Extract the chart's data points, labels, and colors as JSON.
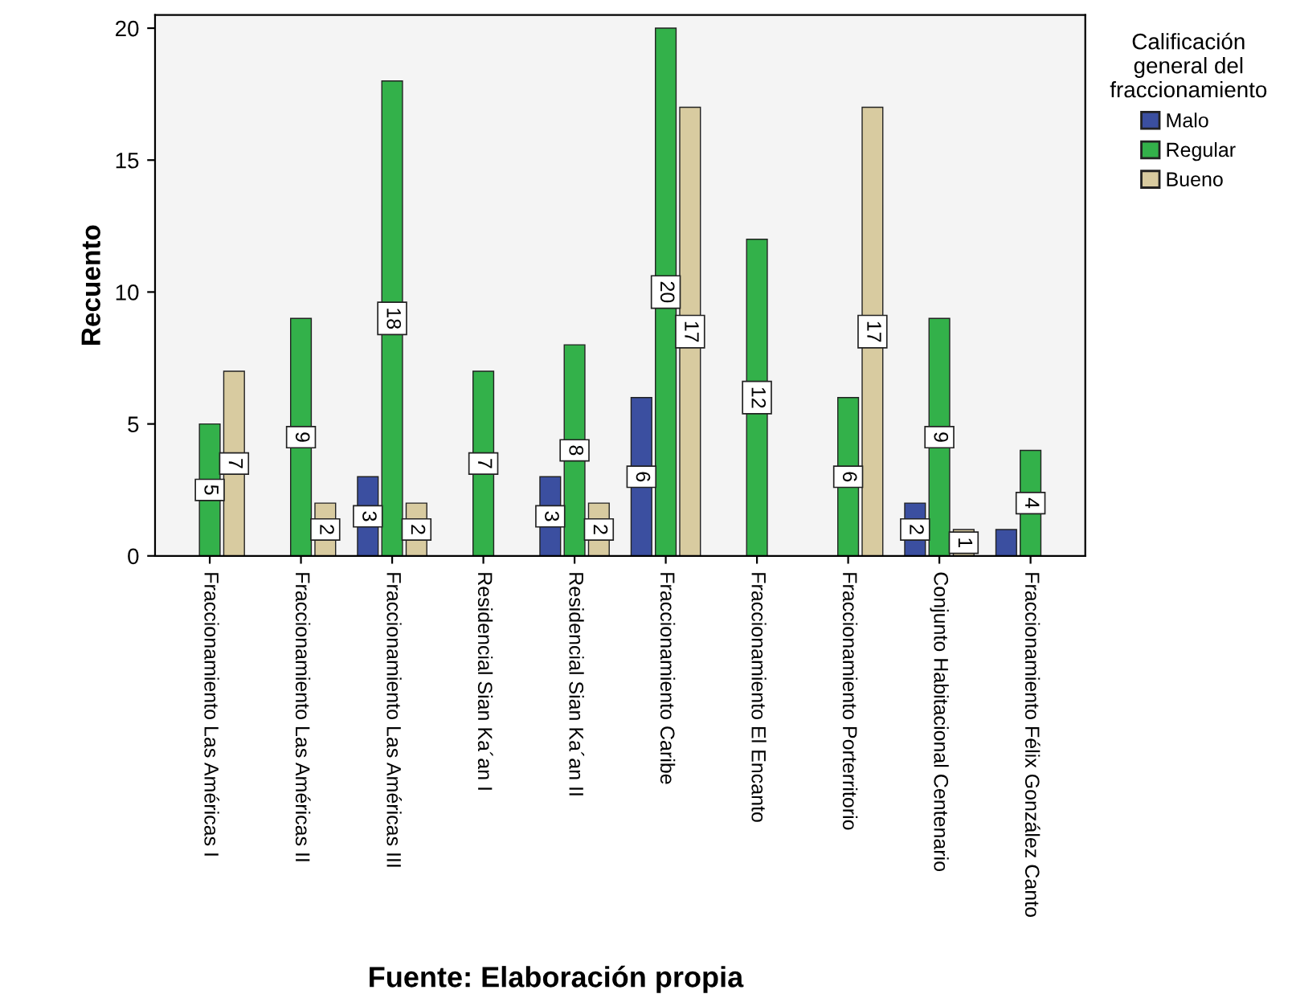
{
  "chart_data": {
    "type": "bar",
    "ylabel": "Recuento",
    "legend_title": "Calificación\ngeneral del\nfraccionamiento",
    "legend": "top right",
    "categories": [
      "Fraccionamiento Las Américas I",
      "Fraccionamiento Las Américas II",
      "Fraccionamiento Las Américas III",
      "Residencial Sian Ka´an I",
      "Residencial Sian Ka´an II",
      "Fraccionamiento Caribe",
      "Fraccionamiento El Encanto",
      "Fraccionamiento Porterritorio",
      "Conjunto Habitacional Centenario",
      "Fraccionamiento Félix González Canto"
    ],
    "series": [
      {
        "name": "Malo",
        "color": "#3b4fa0",
        "values": [
          null,
          null,
          3,
          null,
          3,
          6,
          null,
          null,
          2,
          1
        ],
        "value_labels": [
          null,
          null,
          "3",
          null,
          "3",
          "6",
          null,
          null,
          "2",
          null
        ]
      },
      {
        "name": "Regular",
        "color": "#33b14a",
        "values": [
          5,
          9,
          18,
          7,
          8,
          20,
          12,
          6,
          9,
          4
        ],
        "value_labels": [
          "5",
          "9",
          "18",
          "7",
          "8",
          "20",
          "12",
          "6",
          "9",
          "4"
        ]
      },
      {
        "name": "Bueno",
        "color": "#d8cba0",
        "values": [
          7,
          2,
          2,
          null,
          2,
          17,
          null,
          17,
          1,
          null
        ],
        "value_labels": [
          "7",
          "2",
          "2",
          null,
          "2",
          "17",
          null,
          "17",
          "1",
          null
        ]
      }
    ],
    "ylim": [
      0,
      20.5
    ],
    "yticks": [
      0,
      5,
      10,
      15,
      20
    ],
    "grid": false,
    "annotations": [
      "Fuente: Elaboración propia"
    ]
  }
}
